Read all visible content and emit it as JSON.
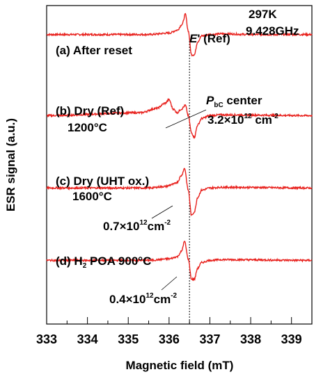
{
  "chart_data": {
    "type": "line",
    "title": "",
    "xlabel": "Magnetic field (mT)",
    "ylabel": "ESR signal (a.u.)",
    "xlim": [
      333,
      339.5
    ],
    "x_ticks": [
      "333",
      "334",
      "335",
      "336",
      "337",
      "338",
      "339"
    ],
    "ylim": [
      0,
      4.4
    ],
    "grid": false,
    "legend": "none",
    "line_color": "#e8201c",
    "reference_line": {
      "x": 336.5,
      "label_italic": "E",
      "label_rest": "' (Ref)"
    },
    "conditions": {
      "temperature": "297K",
      "frequency": "9.428GHz"
    },
    "series": [
      {
        "name": "(a) After reset",
        "baseline": 4.0,
        "x": [
          333,
          335.5,
          336.0,
          336.2,
          336.32,
          336.4,
          336.47,
          336.55,
          336.62,
          336.7,
          336.8,
          337.0,
          337.3,
          338.0,
          339.5
        ],
        "y": [
          4.0,
          4.0,
          4.02,
          4.06,
          4.14,
          4.28,
          4.05,
          3.72,
          3.72,
          3.9,
          3.98,
          4.0,
          4.01,
          4.0,
          4.0
        ]
      },
      {
        "name": "(b) Dry (Ref)",
        "label2": "1200°C",
        "baseline": 2.88,
        "annotation": {
          "prefix_italic": "P",
          "prefix_sub": "bC",
          "text": " center",
          "value": "3.2×10",
          "exp1": "12",
          "unit": " cm",
          "exp2": "-2"
        },
        "x": [
          333,
          335.3,
          335.7,
          335.9,
          336.0,
          336.1,
          336.2,
          336.3,
          336.4,
          336.47,
          336.55,
          336.62,
          336.7,
          336.8,
          337.0,
          337.3,
          339.5
        ],
        "y": [
          2.88,
          2.92,
          2.98,
          3.05,
          3.1,
          2.97,
          2.92,
          2.97,
          3.02,
          2.88,
          2.64,
          2.58,
          2.75,
          2.84,
          2.88,
          2.89,
          2.88
        ]
      },
      {
        "name": "(c) Dry (UHT ox.)",
        "label2": "1600°C",
        "baseline": 1.88,
        "annotation": {
          "value": "0.7×10",
          "exp1": "12",
          "unit": "cm",
          "exp2": "-2"
        },
        "x": [
          333,
          335.5,
          335.9,
          336.1,
          336.2,
          336.3,
          336.38,
          336.47,
          336.55,
          336.62,
          336.7,
          336.8,
          337.0,
          337.3,
          339.5
        ],
        "y": [
          1.88,
          1.88,
          1.9,
          1.93,
          1.96,
          2.05,
          2.15,
          1.85,
          1.5,
          1.55,
          1.75,
          1.85,
          1.88,
          1.89,
          1.88
        ]
      },
      {
        "name": "(d) H",
        "name_sub": "2",
        "name_rest": " POA 900°C",
        "baseline": 0.88,
        "annotation": {
          "value": "0.4×10",
          "exp1": "12",
          "unit": "cm",
          "exp2": "-2"
        },
        "x": [
          333,
          335.5,
          336.0,
          336.2,
          336.3,
          336.38,
          336.47,
          336.55,
          336.62,
          336.7,
          336.8,
          337.0,
          337.3,
          339.5
        ],
        "y": [
          0.88,
          0.88,
          0.9,
          0.93,
          1.0,
          1.14,
          0.9,
          0.62,
          0.62,
          0.77,
          0.85,
          0.88,
          0.89,
          0.88
        ]
      }
    ]
  }
}
